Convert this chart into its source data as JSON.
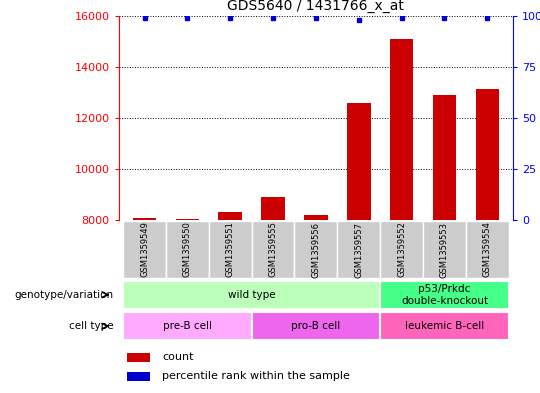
{
  "title": "GDS5640 / 1431766_x_at",
  "samples": [
    "GSM1359549",
    "GSM1359550",
    "GSM1359551",
    "GSM1359555",
    "GSM1359556",
    "GSM1359557",
    "GSM1359552",
    "GSM1359553",
    "GSM1359554"
  ],
  "counts": [
    8100,
    8050,
    8300,
    8900,
    8200,
    12600,
    15100,
    12900,
    13150
  ],
  "percentiles": [
    99,
    99,
    99,
    99,
    99,
    98,
    99,
    99,
    99
  ],
  "ylim_left": [
    8000,
    16000
  ],
  "ylim_right": [
    0,
    100
  ],
  "yticks_left": [
    8000,
    10000,
    12000,
    14000,
    16000
  ],
  "yticks_right": [
    0,
    25,
    50,
    75,
    100
  ],
  "bar_color": "#cc0000",
  "dot_color": "#0000cc",
  "sample_bg_color": "#cccccc",
  "genotype_groups": [
    {
      "label": "wild type",
      "start": 0,
      "end": 6,
      "color": "#bbffbb"
    },
    {
      "label": "p53/Prkdc\ndouble-knockout",
      "start": 6,
      "end": 9,
      "color": "#44ff88"
    }
  ],
  "cell_type_groups": [
    {
      "label": "pre-B cell",
      "start": 0,
      "end": 3,
      "color": "#ffaaff"
    },
    {
      "label": "pro-B cell",
      "start": 3,
      "end": 6,
      "color": "#ee66ee"
    },
    {
      "label": "leukemic B-cell",
      "start": 6,
      "end": 9,
      "color": "#ff66bb"
    }
  ],
  "legend_count_label": "count",
  "legend_pct_label": "percentile rank within the sample",
  "left_labels": [
    "genotype/variation",
    "cell type"
  ]
}
